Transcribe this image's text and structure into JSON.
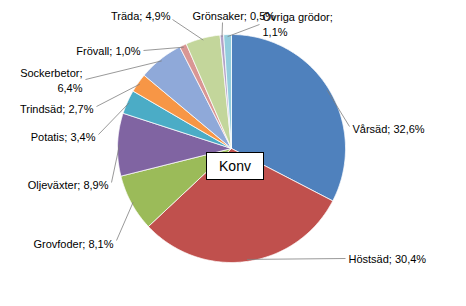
{
  "chart_data": {
    "type": "pie",
    "title": "Konv",
    "categories": [
      "Vårsäd",
      "Höstsäd",
      "Grovfoder",
      "Oljeväxter",
      "Potatis",
      "Trindsäd",
      "Sockerbetor",
      "Frövall",
      "Träda",
      "Grönsaker",
      "Övriga grödor"
    ],
    "values": [
      32.6,
      30.4,
      8.1,
      8.9,
      3.4,
      2.7,
      6.4,
      1.0,
      4.9,
      0.5,
      1.1
    ],
    "value_labels": [
      "Vårsäd; 32,6%",
      "Höstsäd; 30,4%",
      "Grovfoder; 8,1%",
      "Oljeväxter; 8,9%",
      "Potatis; 3,4%",
      "Trindsäd; 2,7%",
      "Sockerbetor; 6,4%",
      "Frövall; 1,0%",
      "Träda; 4,9%",
      "Grönsaker; 0,5%",
      "Övriga grödor; 1,1%"
    ],
    "colors": [
      "#4f81bd",
      "#c0504d",
      "#9bbb59",
      "#8064a2",
      "#4bacc6",
      "#f79646",
      "#8fa9d9",
      "#d99694",
      "#c3d69b",
      "#b3a2c7",
      "#93cddd"
    ],
    "data_labels": true
  }
}
